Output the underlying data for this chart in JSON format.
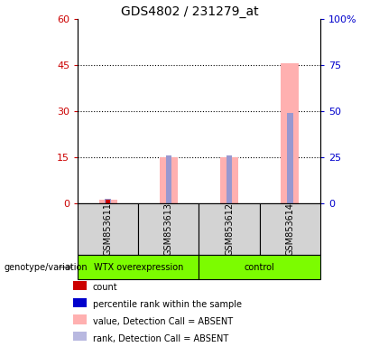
{
  "title": "GDS4802 / 231279_at",
  "samples": [
    "GSM853611",
    "GSM853613",
    "GSM853612",
    "GSM853614"
  ],
  "left_ylim": [
    0,
    60
  ],
  "right_ylim": [
    0,
    100
  ],
  "left_yticks": [
    0,
    15,
    30,
    45,
    60
  ],
  "right_yticks": [
    0,
    25,
    50,
    75,
    100
  ],
  "left_tick_color": "#cc0000",
  "right_tick_color": "#0000cc",
  "pink_bar_values": [
    1.2,
    15.0,
    15.0,
    45.5
  ],
  "blue_bar_values": [
    1.5,
    15.5,
    15.5,
    29.5
  ],
  "red_bar_values": [
    1.0,
    0,
    0,
    0
  ],
  "pink_bar_color": "#ffb0b0",
  "blue_bar_color": "#9898d0",
  "red_bar_color": "#cc0000",
  "sample_bg_color": "#d3d3d3",
  "group1_color": "#7CFC00",
  "group2_color": "#7CFC00",
  "legend_colors": [
    "#cc0000",
    "#0000cc",
    "#ffb0b0",
    "#b8b8e0"
  ],
  "legend_labels": [
    "count",
    "percentile rank within the sample",
    "value, Detection Call = ABSENT",
    "rank, Detection Call = ABSENT"
  ],
  "group_label": "genotype/variation",
  "group1_name": "WTX overexpression",
  "group2_name": "control"
}
